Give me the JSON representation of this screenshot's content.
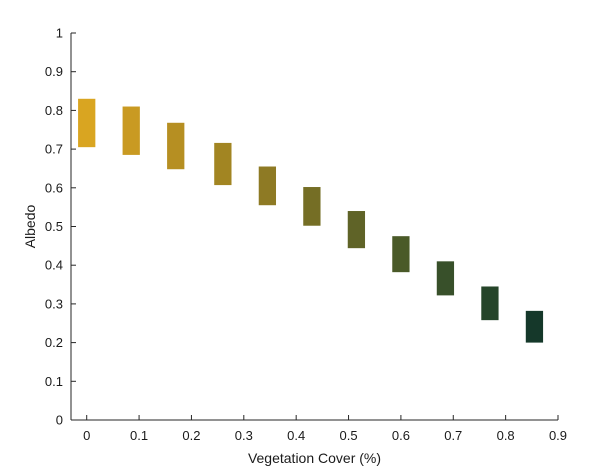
{
  "chart_data": {
    "type": "bar",
    "subtype": "floating-range",
    "xlabel": "Vegetation Cover (%)",
    "ylabel": "Albedo",
    "xlim": [
      -0.03,
      0.9
    ],
    "ylim": [
      0,
      1
    ],
    "xticks": [
      0,
      0.1,
      0.2,
      0.3,
      0.4,
      0.5,
      0.6,
      0.7,
      0.8,
      0.9
    ],
    "yticks": [
      0,
      0.1,
      0.2,
      0.3,
      0.4,
      0.5,
      0.6,
      0.7,
      0.8,
      0.9,
      1
    ],
    "xtick_labels": [
      "0",
      "0.1",
      "0.2",
      "0.3",
      "0.4",
      "0.5",
      "0.6",
      "0.7",
      "0.8",
      "0.9"
    ],
    "ytick_labels": [
      "0",
      "0.1",
      "0.2",
      "0.3",
      "0.4",
      "0.5",
      "0.6",
      "0.7",
      "0.8",
      "0.9",
      "1"
    ],
    "grid": false,
    "bar_width": 0.033,
    "bars": [
      {
        "x": 0.0,
        "low": 0.705,
        "high": 0.83,
        "color": "#d9a521"
      },
      {
        "x": 0.085,
        "low": 0.685,
        "high": 0.81,
        "color": "#c99a22"
      },
      {
        "x": 0.17,
        "low": 0.648,
        "high": 0.768,
        "color": "#b68f22"
      },
      {
        "x": 0.26,
        "low": 0.607,
        "high": 0.716,
        "color": "#a28522"
      },
      {
        "x": 0.345,
        "low": 0.555,
        "high": 0.655,
        "color": "#8e7a24"
      },
      {
        "x": 0.43,
        "low": 0.502,
        "high": 0.602,
        "color": "#756e25"
      },
      {
        "x": 0.515,
        "low": 0.444,
        "high": 0.54,
        "color": "#5f6327"
      },
      {
        "x": 0.6,
        "low": 0.382,
        "high": 0.475,
        "color": "#4a5a28"
      },
      {
        "x": 0.685,
        "low": 0.322,
        "high": 0.41,
        "color": "#38502a"
      },
      {
        "x": 0.77,
        "low": 0.258,
        "high": 0.345,
        "color": "#26452a"
      },
      {
        "x": 0.855,
        "low": 0.2,
        "high": 0.282,
        "color": "#15382a"
      }
    ]
  }
}
